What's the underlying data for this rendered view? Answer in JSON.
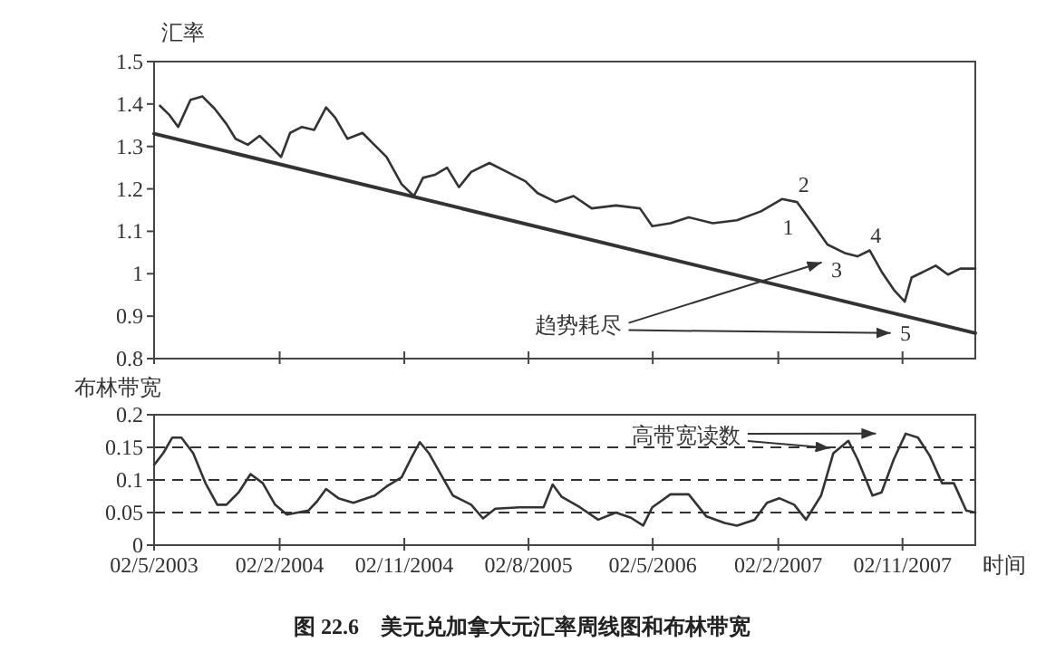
{
  "chart_data": [
    {
      "type": "line",
      "ylabel": "汇率",
      "xlim": [
        "2003-05-02",
        "2008-04-10"
      ],
      "xticks": [
        {
          "value": "2003-05-02",
          "label": null
        },
        {
          "value": "2004-02-02",
          "label": null
        },
        {
          "value": "2004-11-02",
          "label": null
        },
        {
          "value": "2005-08-02",
          "label": null
        },
        {
          "value": "2006-05-02",
          "label": null
        },
        {
          "value": "2007-02-02",
          "label": null
        },
        {
          "value": "2007-11-02",
          "label": null
        }
      ],
      "ylim": [
        0.8,
        1.5
      ],
      "yticks": [
        0.8,
        0.9,
        1,
        1.1,
        1.2,
        1.3,
        1.4,
        1.5
      ],
      "tick_labels": "y",
      "series": [
        {
          "color": "#333333",
          "x": [
            "2003-05-15",
            "2003-06-04",
            "2003-06-24",
            "2003-07-21",
            "2003-08-16",
            "2003-09-12",
            "2003-10-08",
            "2003-10-28",
            "2003-11-24",
            "2003-12-20",
            "2004-01-16",
            "2004-02-05",
            "2004-02-25",
            "2004-03-22",
            "2004-04-18",
            "2004-05-14",
            "2004-06-03",
            "2004-06-30",
            "2004-08-02",
            "2004-08-28",
            "2004-09-24",
            "2004-10-27",
            "2004-11-23",
            "2004-12-13",
            "2005-01-08",
            "2005-02-04",
            "2005-03-02",
            "2005-03-29",
            "2005-05-08",
            "2005-06-16",
            "2005-07-26",
            "2005-08-22",
            "2005-10-01",
            "2005-11-09",
            "2005-12-19",
            "2006-02-10",
            "2006-04-04",
            "2006-05-01",
            "2006-06-10",
            "2006-07-20",
            "2006-09-11",
            "2006-11-03",
            "2006-12-26",
            "2007-02-10",
            "2007-03-15",
            "2007-04-18",
            "2007-05-21",
            "2007-06-30",
            "2007-07-26",
            "2007-08-22",
            "2007-09-17",
            "2007-10-14",
            "2007-11-07",
            "2007-11-22",
            "2007-12-19",
            "2008-01-14",
            "2008-02-10",
            "2008-03-08",
            "2008-04-10"
          ],
          "values": [
            1.396,
            1.375,
            1.346,
            1.41,
            1.418,
            1.389,
            1.353,
            1.318,
            1.304,
            1.325,
            1.297,
            1.275,
            1.332,
            1.346,
            1.339,
            1.392,
            1.368,
            1.318,
            1.332,
            1.304,
            1.275,
            1.211,
            1.183,
            1.226,
            1.233,
            1.25,
            1.204,
            1.24,
            1.261,
            1.24,
            1.218,
            1.19,
            1.169,
            1.183,
            1.154,
            1.161,
            1.154,
            1.112,
            1.119,
            1.133,
            1.119,
            1.126,
            1.147,
            1.176,
            1.169,
            1.119,
            1.069,
            1.048,
            1.041,
            1.055,
            1.005,
            0.962,
            0.934,
            0.991,
            1.005,
            1.019,
            0.998,
            1.012,
            1.012
          ]
        },
        {
          "type": "line",
          "color": "#333333",
          "x": [
            "2003-05-02",
            "2008-04-10"
          ],
          "values": [
            1.33,
            0.86
          ]
        }
      ],
      "annotations": [
        "1",
        "2",
        "3",
        "4",
        "5",
        "趋势耗尽"
      ]
    },
    {
      "type": "line",
      "ylabel": "布林带宽",
      "xlabel": "时间",
      "xlim": [
        "2003-05-02",
        "2008-04-10"
      ],
      "xticks": [
        {
          "value": "2003-05-02",
          "label": "02/5/2003"
        },
        {
          "value": "2004-02-02",
          "label": "02/2/2004"
        },
        {
          "value": "2004-11-02",
          "label": "02/11/2004"
        },
        {
          "value": "2005-08-02",
          "label": "02/8/2005"
        },
        {
          "value": "2006-05-02",
          "label": "02/5/2006"
        },
        {
          "value": "2007-02-02",
          "label": "02/2/2007"
        },
        {
          "value": "2007-11-02",
          "label": "02/11/2007"
        }
      ],
      "ylim": [
        0,
        0.2
      ],
      "yticks": [
        0,
        0.05,
        0.1,
        0.15,
        0.2
      ],
      "ref_lines": [
        {
          "axis": "y",
          "value": 0.05,
          "line_style": "dashed"
        },
        {
          "axis": "y",
          "value": 0.1,
          "line_style": "dashed"
        },
        {
          "axis": "y",
          "value": 0.15,
          "line_style": "dashed"
        }
      ],
      "series": [
        {
          "color": "#333333",
          "x": [
            "2003-05-02",
            "2003-05-22",
            "2003-06-11",
            "2003-07-01",
            "2003-07-27",
            "2003-08-23",
            "2003-09-18",
            "2003-10-08",
            "2003-11-04",
            "2003-11-30",
            "2003-12-27",
            "2004-01-23",
            "2004-02-18",
            "2004-04-05",
            "2004-04-24",
            "2004-05-14",
            "2004-06-10",
            "2004-07-13",
            "2004-08-29",
            "2004-09-24",
            "2004-10-27",
            "2004-11-16",
            "2004-12-06",
            "2004-12-26",
            "2005-01-21",
            "2005-02-17",
            "2005-03-29",
            "2005-04-24",
            "2005-05-21",
            "2005-07-13",
            "2005-09-04",
            "2005-09-24",
            "2005-10-14",
            "2005-11-23",
            "2006-01-02",
            "2006-02-10",
            "2006-03-15",
            "2006-04-11",
            "2006-05-01",
            "2006-06-10",
            "2006-07-20",
            "2006-08-28",
            "2006-10-07",
            "2006-11-03",
            "2006-12-12",
            "2007-01-08",
            "2007-02-04",
            "2007-03-09",
            "2007-04-04",
            "2007-05-07",
            "2007-06-03",
            "2007-07-06",
            "2007-07-26",
            "2007-08-28",
            "2007-09-17",
            "2007-10-14",
            "2007-11-09",
            "2007-12-06",
            "2008-01-01",
            "2008-01-28",
            "2008-02-23",
            "2008-03-21",
            "2008-04-10"
          ],
          "values": [
            0.123,
            0.141,
            0.165,
            0.165,
            0.141,
            0.095,
            0.062,
            0.062,
            0.081,
            0.109,
            0.095,
            0.062,
            0.047,
            0.053,
            0.067,
            0.086,
            0.072,
            0.065,
            0.076,
            0.09,
            0.104,
            0.132,
            0.158,
            0.141,
            0.109,
            0.076,
            0.062,
            0.041,
            0.056,
            0.058,
            0.058,
            0.093,
            0.074,
            0.058,
            0.039,
            0.05,
            0.042,
            0.03,
            0.058,
            0.078,
            0.078,
            0.044,
            0.034,
            0.03,
            0.039,
            0.065,
            0.072,
            0.062,
            0.039,
            0.076,
            0.141,
            0.16,
            0.132,
            0.076,
            0.081,
            0.132,
            0.171,
            0.165,
            0.137,
            0.095,
            0.095,
            0.053,
            0.05
          ]
        }
      ],
      "annotations": [
        "高带宽读数",
        "图 22.6　美元兑加拿大元汇率周线图和布林带宽"
      ]
    }
  ]
}
